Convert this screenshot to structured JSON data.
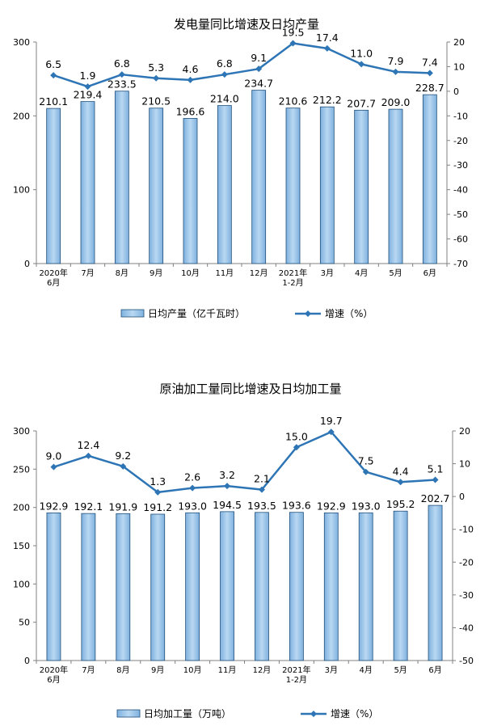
{
  "chart_data": [
    {
      "type": "bar",
      "title": "发电量同比增速及日均产量",
      "categories": [
        [
          "2020年",
          "6月"
        ],
        [
          "7月"
        ],
        [
          "8月"
        ],
        [
          "9月"
        ],
        [
          "10月"
        ],
        [
          "11月"
        ],
        [
          "12月"
        ],
        [
          "2021年",
          "1-2月"
        ],
        [
          "3月"
        ],
        [
          "4月"
        ],
        [
          "5月"
        ],
        [
          "6月"
        ]
      ],
      "series": [
        {
          "name": "日均产量（亿千瓦时）",
          "type": "bar",
          "axis": "left",
          "values": [
            210.1,
            219.4,
            233.5,
            210.5,
            196.6,
            214.0,
            234.7,
            210.6,
            212.2,
            207.7,
            209.0,
            228.7
          ],
          "labels": [
            "210.1",
            "219.4",
            "233.5",
            "210.5",
            "196.6",
            "214.0",
            "234.7",
            "210.6",
            "212.2",
            "207.7",
            "209.0",
            "228.7"
          ]
        },
        {
          "name": "增速（%）",
          "type": "line",
          "axis": "right",
          "values": [
            6.5,
            1.9,
            6.8,
            5.3,
            4.6,
            6.8,
            9.1,
            19.5,
            17.4,
            11.0,
            7.9,
            7.4
          ],
          "labels": [
            "6.5",
            "1.9",
            "6.8",
            "5.3",
            "4.6",
            "6.8",
            "9.1",
            "19.5",
            "17.4",
            "11.0",
            "7.9",
            "7.4"
          ]
        }
      ],
      "ylim_left": [
        0,
        300
      ],
      "yticks_left": [
        0,
        100,
        200,
        300
      ],
      "ylim_right": [
        -70,
        20
      ],
      "yticks_right": [
        -70,
        -60,
        -50,
        -40,
        -30,
        -20,
        -10,
        0,
        10,
        20
      ],
      "legend": "bottom",
      "colors": {
        "bar_fill": "#9dc3e6",
        "bar_stroke": "#1f4e79",
        "line": "#2e75b6"
      },
      "grid": false
    },
    {
      "type": "bar",
      "title": "原油加工量同比增速及日均加工量",
      "categories": [
        [
          "2020年",
          "6月"
        ],
        [
          "7月"
        ],
        [
          "8月"
        ],
        [
          "9月"
        ],
        [
          "10月"
        ],
        [
          "11月"
        ],
        [
          "12月"
        ],
        [
          "2021年",
          "1-2月"
        ],
        [
          "3月"
        ],
        [
          "4月"
        ],
        [
          "5月"
        ],
        [
          "6月"
        ]
      ],
      "series": [
        {
          "name": "日均加工量（万吨）",
          "type": "bar",
          "axis": "left",
          "values": [
            192.9,
            192.1,
            191.9,
            191.2,
            193.0,
            194.5,
            193.5,
            193.6,
            192.9,
            193.0,
            195.2,
            202.7
          ],
          "labels": [
            "192.9",
            "192.1",
            "191.9",
            "191.2",
            "193.0",
            "194.5",
            "193.5",
            "193.6",
            "192.9",
            "193.0",
            "195.2",
            "202.7"
          ]
        },
        {
          "name": "增速（%）",
          "type": "line",
          "axis": "right",
          "values": [
            9.0,
            12.4,
            9.2,
            1.3,
            2.6,
            3.2,
            2.1,
            15.0,
            19.7,
            7.5,
            4.4,
            5.1
          ],
          "labels": [
            "9.0",
            "12.4",
            "9.2",
            "1.3",
            "2.6",
            "3.2",
            "2.1",
            "15.0",
            "19.7",
            "7.5",
            "4.4",
            "5.1"
          ]
        }
      ],
      "ylim_left": [
        0,
        300
      ],
      "yticks_left": [
        0,
        50,
        100,
        150,
        200,
        250,
        300
      ],
      "ylim_right": [
        -50,
        20
      ],
      "yticks_right": [
        -50,
        -40,
        -30,
        -20,
        -10,
        0,
        10,
        20
      ],
      "legend": "bottom",
      "colors": {
        "bar_fill": "#9dc3e6",
        "bar_stroke": "#1f4e79",
        "line": "#2e75b6"
      },
      "grid": false
    }
  ]
}
